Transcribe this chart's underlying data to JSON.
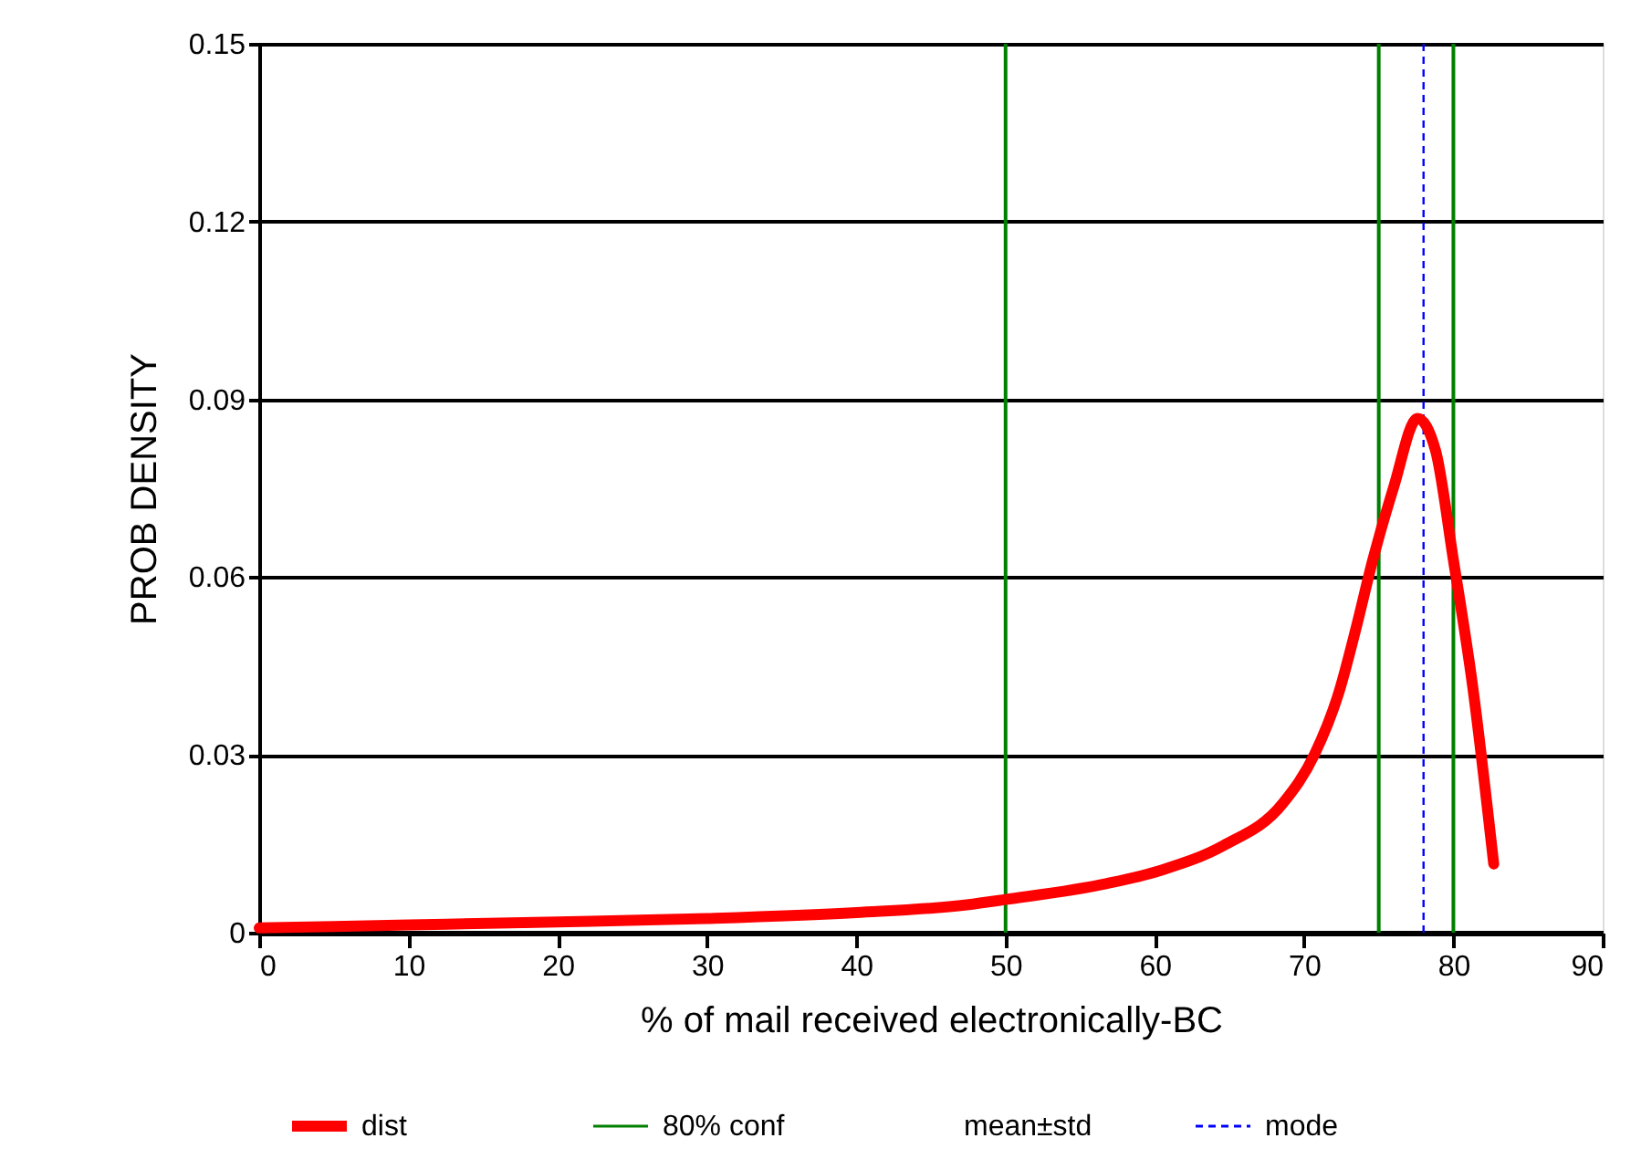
{
  "chart_data": {
    "type": "line",
    "xlabel": "% of mail received electronically-BC",
    "ylabel": "PROB DENSITY",
    "xlim": [
      0,
      90
    ],
    "xticks": [
      0,
      10,
      20,
      30,
      40,
      50,
      60,
      70,
      80,
      90
    ],
    "ylim": [
      0,
      0.15
    ],
    "yticks": [
      0,
      0.03,
      0.06,
      0.09,
      0.12,
      0.15
    ],
    "grid": "y",
    "legend": "bottom",
    "series": [
      {
        "name": "dist",
        "color": "#ff0000",
        "x": [
          0,
          10,
          20,
          30,
          40,
          47.4,
          50,
          56.8,
          60.5,
          64.6,
          68.6,
          70.7,
          72.3,
          73.5,
          74.6,
          76,
          77.6,
          78.8,
          80,
          81.3,
          82.7
        ],
        "values": [
          0.0008,
          0.0013,
          0.0018,
          0.0024,
          0.0034,
          0.0047,
          0.0056,
          0.0083,
          0.0106,
          0.0147,
          0.0219,
          0.0301,
          0.0403,
          0.0516,
          0.0629,
          0.0752,
          0.0868,
          0.0814,
          0.0629,
          0.0414,
          0.0116
        ]
      }
    ],
    "ref_lines": [
      {
        "axis": "x",
        "value": 50,
        "label": "80% conf",
        "color": "#008000",
        "line_style": "solid"
      },
      {
        "axis": "x",
        "value": 80,
        "label": null,
        "color": "#008000",
        "line_style": "solid"
      },
      {
        "axis": "x",
        "value": 75,
        "label": null,
        "color": "#008000",
        "line_style": "solid"
      },
      {
        "axis": "x",
        "value": 78,
        "label": "mode",
        "color": "#0000ff",
        "line_style": "dashed"
      }
    ],
    "annotations": [
      "mean±std"
    ]
  }
}
